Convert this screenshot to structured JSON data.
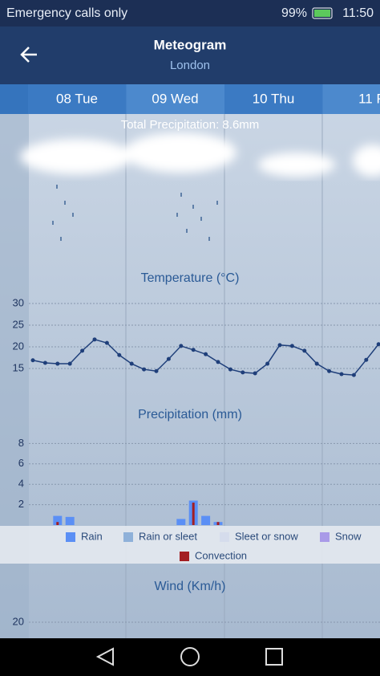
{
  "status_bar": {
    "carrier": "Emergency calls only",
    "battery": "99%",
    "time": "11:50"
  },
  "header": {
    "title": "Meteogram",
    "subtitle": "London"
  },
  "day_tabs": [
    "08 Tue",
    "09 Wed",
    "10 Thu",
    "11 F"
  ],
  "total_precipitation": "Total Precipitation: 8.6mm",
  "temperature": {
    "type": "line",
    "title": "Temperature (°C)",
    "ylim": [
      10,
      33
    ],
    "yticks": [
      15,
      20,
      25,
      30
    ],
    "grid": true,
    "color": "#1f3f7a",
    "values": [
      16.9,
      16.3,
      16.1,
      16.1,
      19.1,
      21.7,
      20.9,
      18.1,
      16.1,
      14.8,
      14.4,
      17.2,
      20.2,
      19.3,
      18.3,
      16.5,
      14.8,
      14.1,
      13.9,
      16.1,
      20.4,
      20.2,
      19.1,
      16.1,
      14.4,
      13.7,
      13.5,
      17.0,
      20.6
    ]
  },
  "precipitation": {
    "type": "bar",
    "title": "Precipitation (mm)",
    "ylim": [
      0,
      8.5
    ],
    "yticks": [
      2,
      4,
      6,
      8
    ],
    "grid": true,
    "series": [
      {
        "name": "Rain",
        "color": "#5b8ff5",
        "values": [
          0,
          0,
          0.9,
          0.8,
          0,
          0,
          0,
          0,
          0,
          0,
          0,
          0,
          0.6,
          2.4,
          0.9,
          0.3,
          0,
          0,
          0,
          0,
          0,
          0,
          0,
          0,
          0,
          0,
          0,
          0,
          0
        ]
      },
      {
        "name": "Rain or sleet",
        "color": "#8fb1d9",
        "values": [
          0,
          0,
          0,
          0,
          0,
          0,
          0,
          0,
          0,
          0,
          0,
          0,
          0,
          0,
          0,
          0,
          0,
          0,
          0,
          0,
          0,
          0,
          0,
          0,
          0,
          0,
          0,
          0,
          0
        ]
      },
      {
        "name": "Sleet or snow",
        "color": "#d5dcec",
        "values": [
          0,
          0,
          0,
          0,
          0,
          0,
          0,
          0,
          0,
          0,
          0,
          0,
          0,
          0,
          0,
          0,
          0,
          0,
          0,
          0,
          0,
          0,
          0,
          0,
          0,
          0,
          0,
          0,
          0
        ]
      },
      {
        "name": "Snow",
        "color": "#a99ae8",
        "values": [
          0,
          0,
          0,
          0,
          0,
          0,
          0,
          0,
          0,
          0,
          0,
          0,
          0,
          0,
          0,
          0,
          0,
          0,
          0,
          0,
          0,
          0,
          0,
          0,
          0,
          0,
          0,
          0,
          0
        ]
      },
      {
        "name": "Convection",
        "color": "#a31e22",
        "values": [
          0,
          0,
          0.3,
          0,
          0,
          0,
          0,
          0,
          0,
          0,
          0,
          0,
          0,
          2.2,
          0,
          0.3,
          0,
          0,
          0,
          0,
          0,
          0,
          0,
          0,
          0,
          0,
          0,
          0,
          0
        ]
      }
    ]
  },
  "wind": {
    "type": "line",
    "title": "Wind (Km/h)",
    "ylim": [
      16,
      24
    ],
    "yticks": [
      20
    ],
    "grid": true
  }
}
